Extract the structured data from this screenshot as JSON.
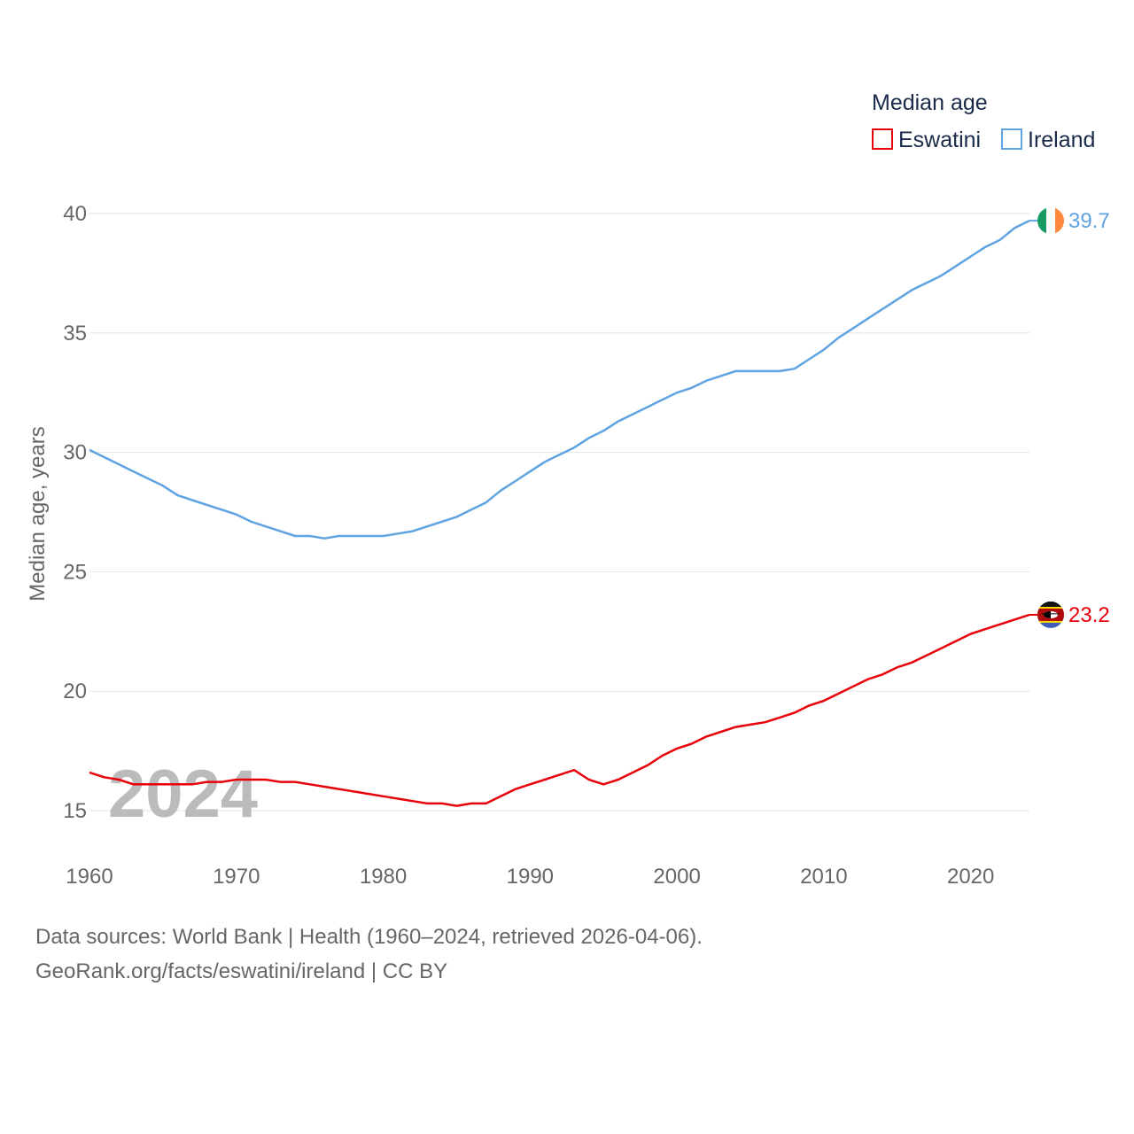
{
  "chart_data": {
    "type": "line",
    "ylabel": "Median age, years",
    "xlabel": "",
    "xlim": [
      1960,
      2024
    ],
    "ylim": [
      13.5,
      40
    ],
    "x_ticks": [
      "1960",
      "1970",
      "1980",
      "1990",
      "2000",
      "2010",
      "2020"
    ],
    "y_ticks": [
      "15",
      "20",
      "25",
      "30",
      "35",
      "40"
    ],
    "legend_title": "Median age",
    "legend_position": "top-right",
    "year_watermark": "2024",
    "x": [
      1960,
      1961,
      1962,
      1963,
      1964,
      1965,
      1966,
      1967,
      1968,
      1969,
      1970,
      1971,
      1972,
      1973,
      1974,
      1975,
      1976,
      1977,
      1978,
      1979,
      1980,
      1981,
      1982,
      1983,
      1984,
      1985,
      1986,
      1987,
      1988,
      1989,
      1990,
      1991,
      1992,
      1993,
      1994,
      1995,
      1996,
      1997,
      1998,
      1999,
      2000,
      2001,
      2002,
      2003,
      2004,
      2005,
      2006,
      2007,
      2008,
      2009,
      2010,
      2011,
      2012,
      2013,
      2014,
      2015,
      2016,
      2017,
      2018,
      2019,
      2020,
      2021,
      2022,
      2023,
      2024
    ],
    "series": [
      {
        "name": "Eswatini",
        "color": "#e8000b",
        "end_label": "23.2",
        "flag": "eswatini-flag",
        "values": [
          16.6,
          16.4,
          16.3,
          16.1,
          16.1,
          16.1,
          16.1,
          16.1,
          16.2,
          16.2,
          16.3,
          16.3,
          16.3,
          16.2,
          16.2,
          16.1,
          16.0,
          15.9,
          15.8,
          15.7,
          15.6,
          15.5,
          15.4,
          15.3,
          15.3,
          15.2,
          15.3,
          15.3,
          15.6,
          15.9,
          16.1,
          16.3,
          16.5,
          16.7,
          16.3,
          16.1,
          16.3,
          16.6,
          16.9,
          17.3,
          17.6,
          17.8,
          18.1,
          18.3,
          18.5,
          18.6,
          18.7,
          18.9,
          19.1,
          19.4,
          19.6,
          19.9,
          20.2,
          20.5,
          20.7,
          21.0,
          21.2,
          21.5,
          21.8,
          22.1,
          22.4,
          22.6,
          22.8,
          23.0,
          23.2
        ]
      },
      {
        "name": "Ireland",
        "color": "#5fa3e0",
        "end_label": "39.7",
        "flag": "ireland-flag",
        "values": [
          30.1,
          29.8,
          29.5,
          29.2,
          28.9,
          28.6,
          28.2,
          28.0,
          27.8,
          27.6,
          27.4,
          27.1,
          26.9,
          26.7,
          26.5,
          26.5,
          26.4,
          26.5,
          26.5,
          26.5,
          26.5,
          26.6,
          26.7,
          26.9,
          27.1,
          27.3,
          27.6,
          27.9,
          28.4,
          28.8,
          29.2,
          29.6,
          29.9,
          30.2,
          30.6,
          30.9,
          31.3,
          31.6,
          31.9,
          32.2,
          32.5,
          32.7,
          33.0,
          33.2,
          33.4,
          33.4,
          33.4,
          33.4,
          33.5,
          33.9,
          34.3,
          34.8,
          35.2,
          35.6,
          36.0,
          36.4,
          36.8,
          37.1,
          37.4,
          37.8,
          38.2,
          38.6,
          38.9,
          39.4,
          39.7
        ]
      }
    ]
  },
  "footer": {
    "line1": "Data sources: World Bank | Health (1960–2024, retrieved 2026-04-06).",
    "line2": "GeoRank.org/facts/eswatini/ireland | CC BY"
  }
}
